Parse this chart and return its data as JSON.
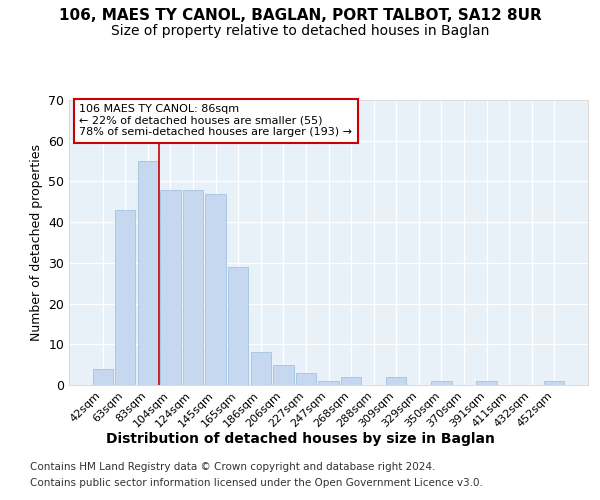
{
  "title1": "106, MAES TY CANOL, BAGLAN, PORT TALBOT, SA12 8UR",
  "title2": "Size of property relative to detached houses in Baglan",
  "xlabel": "Distribution of detached houses by size in Baglan",
  "ylabel": "Number of detached properties",
  "footnote1": "Contains HM Land Registry data © Crown copyright and database right 2024.",
  "footnote2": "Contains public sector information licensed under the Open Government Licence v3.0.",
  "bar_labels": [
    "42sqm",
    "63sqm",
    "83sqm",
    "104sqm",
    "124sqm",
    "145sqm",
    "165sqm",
    "186sqm",
    "206sqm",
    "227sqm",
    "247sqm",
    "268sqm",
    "288sqm",
    "309sqm",
    "329sqm",
    "350sqm",
    "370sqm",
    "391sqm",
    "411sqm",
    "432sqm",
    "452sqm"
  ],
  "bar_values": [
    4,
    43,
    55,
    48,
    48,
    47,
    29,
    8,
    5,
    3,
    1,
    2,
    0,
    2,
    0,
    1,
    0,
    1,
    0,
    0,
    1
  ],
  "bar_color": "#c5d8ef",
  "bar_edge_color": "#9bbcdd",
  "vline_x": 2.5,
  "vline_color": "#cc0000",
  "annotation_line0": "106 MAES TY CANOL: 86sqm",
  "annotation_line1": "← 22% of detached houses are smaller (55)",
  "annotation_line2": "78% of semi-detached houses are larger (193) →",
  "annotation_box_fc": "#ffffff",
  "annotation_box_ec": "#cc0000",
  "ylim": [
    0,
    70
  ],
  "yticks": [
    0,
    10,
    20,
    30,
    40,
    50,
    60,
    70
  ],
  "bg_color": "#e8f0f8",
  "fig_bg_color": "#ffffff",
  "grid_color": "#ffffff",
  "title1_fontsize": 11,
  "title2_fontsize": 10,
  "tick_fontsize": 8,
  "ylabel_fontsize": 9,
  "xlabel_fontsize": 10,
  "footnote_fontsize": 7.5
}
